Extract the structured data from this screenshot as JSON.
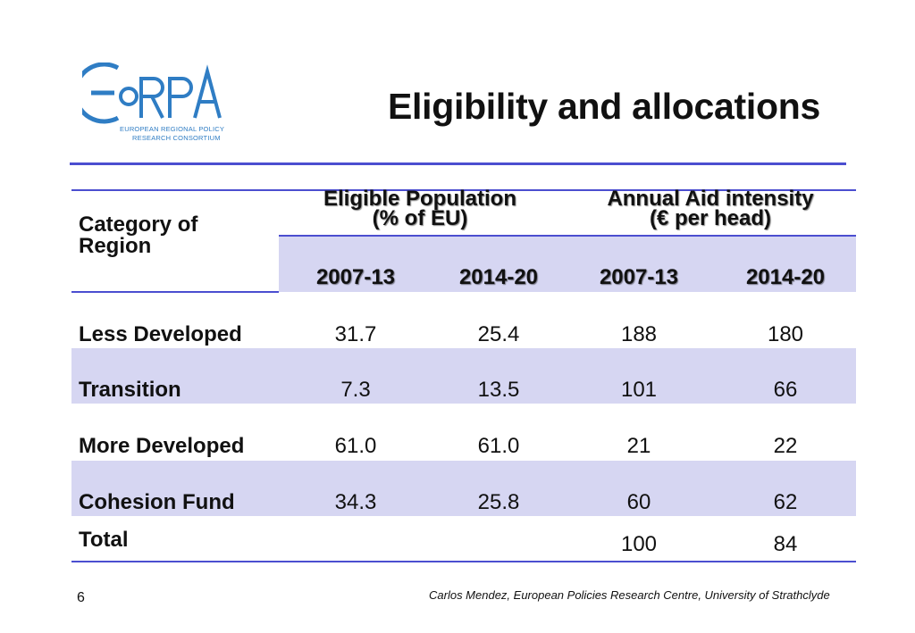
{
  "logo": {
    "brand": "EoRPA",
    "line1": "EUROPEAN REGIONAL POLICY",
    "line2": "RESEARCH CONSORTIUM",
    "color": "#2f7dc4"
  },
  "title": "Eligibility and allocations",
  "table": {
    "category_header": [
      "Category of",
      "Region"
    ],
    "groups": [
      {
        "line1": "Eligible Population",
        "line2": "(% of EU)"
      },
      {
        "line1": "Annual Aid intensity",
        "line2": "(€ per head)"
      }
    ],
    "years": [
      "2007-13",
      "2014-20",
      "2007-13",
      "2014-20"
    ],
    "rows": [
      {
        "label": "Less Developed",
        "values": [
          "31.7",
          "25.4",
          "188",
          "180"
        ]
      },
      {
        "label": "Transition",
        "values": [
          "7.3",
          "13.5",
          "101",
          "66"
        ]
      },
      {
        "label": "More Developed",
        "values": [
          "61.0",
          "61.0",
          "21",
          "22"
        ]
      },
      {
        "label": "Cohesion Fund",
        "values": [
          "34.3",
          "25.8",
          "60",
          "62"
        ]
      }
    ],
    "total": {
      "label": "Total",
      "values": [
        "",
        "",
        "100",
        "84"
      ]
    }
  },
  "footer": "Carlos Mendez, European Policies Research Centre, University of Strathclyde",
  "page_number": "6",
  "colors": {
    "rule": "#4b4ed0",
    "band": "#d6d6f2",
    "logo": "#2f7dc4"
  }
}
